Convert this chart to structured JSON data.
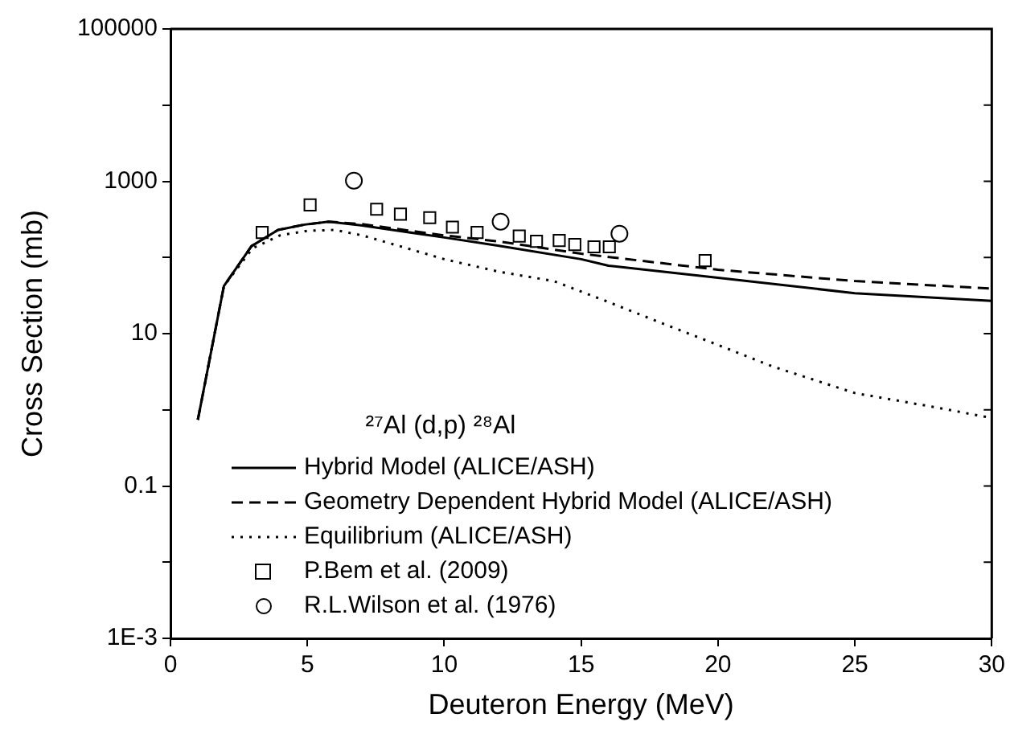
{
  "chart_data": {
    "type": "line",
    "xlabel": "Deuteron Energy (MeV)",
    "ylabel": "Cross Section (mb)",
    "legend_title": "²⁷Al (d,p) ²⁸Al",
    "legend": "bottom left",
    "log": "y",
    "grid": false,
    "xlim": [
      0,
      30
    ],
    "xticks": [
      0,
      5,
      10,
      15,
      20,
      25,
      30
    ],
    "ylim": [
      0.001,
      100000
    ],
    "yticks": [
      {
        "value": 0.001,
        "label": "1E-3"
      },
      {
        "value": 0.01,
        "label": null
      },
      0.1,
      {
        "value": 1,
        "label": null
      },
      10,
      {
        "value": 100,
        "label": null
      },
      1000,
      {
        "value": 10000,
        "label": null
      },
      100000
    ],
    "series": [
      {
        "name": "Hybrid Model (ALICE/ASH)",
        "type": "line",
        "line_style": "solid",
        "color": "#000000",
        "x": [
          1,
          1.95,
          2.96,
          3.93,
          4.9,
          5.78,
          6.95,
          10,
          12,
          15,
          16,
          20,
          25,
          30
        ],
        "values": [
          0.74,
          42,
          141,
          230,
          270,
          295,
          265,
          183,
          142,
          95,
          78,
          54,
          34,
          27
        ]
      },
      {
        "name": "Geometry Dependent Hybrid Model (ALICE/ASH)",
        "type": "line",
        "line_style": "dashed",
        "color": "#000000",
        "x": [
          1,
          1.95,
          2.96,
          3.93,
          4.9,
          5.78,
          6.95,
          10,
          12,
          15,
          20,
          25,
          30
        ],
        "values": [
          0.74,
          42,
          141,
          230,
          270,
          295,
          275,
          195,
          162,
          112,
          69,
          49,
          39
        ]
      },
      {
        "name": "Equilibrium (ALICE/ASH)",
        "type": "line",
        "line_style": "dotted",
        "color": "#000000",
        "x": [
          1,
          1.95,
          3,
          4,
          5,
          6,
          7,
          8,
          10,
          12,
          14,
          16,
          18,
          20,
          22,
          25,
          28,
          30
        ],
        "values": [
          0.74,
          42,
          132,
          195,
          224,
          230,
          195,
          154,
          95,
          65,
          49,
          26,
          13.5,
          7.1,
          3.7,
          1.66,
          1.07,
          0.78
        ]
      },
      {
        "name": "P.Bem et al. (2009)",
        "type": "scatter",
        "marker": "square",
        "color": "#000000",
        "x": [
          3.35,
          5.1,
          7.53,
          8.4,
          9.47,
          10.3,
          11.2,
          12.74,
          13.37,
          14.2,
          14.77,
          15.47,
          16.03,
          19.53
        ],
        "values": [
          213,
          490,
          430,
          370,
          333,
          250,
          213,
          191,
          163,
          167,
          148,
          138,
          138,
          91
        ]
      },
      {
        "name": "R.L.Wilson et al. (1976)",
        "type": "scatter",
        "marker": "circle",
        "color": "#000000",
        "x": [
          6.7,
          12.06,
          16.4
        ],
        "values": [
          1020,
          295,
          205
        ]
      }
    ]
  }
}
